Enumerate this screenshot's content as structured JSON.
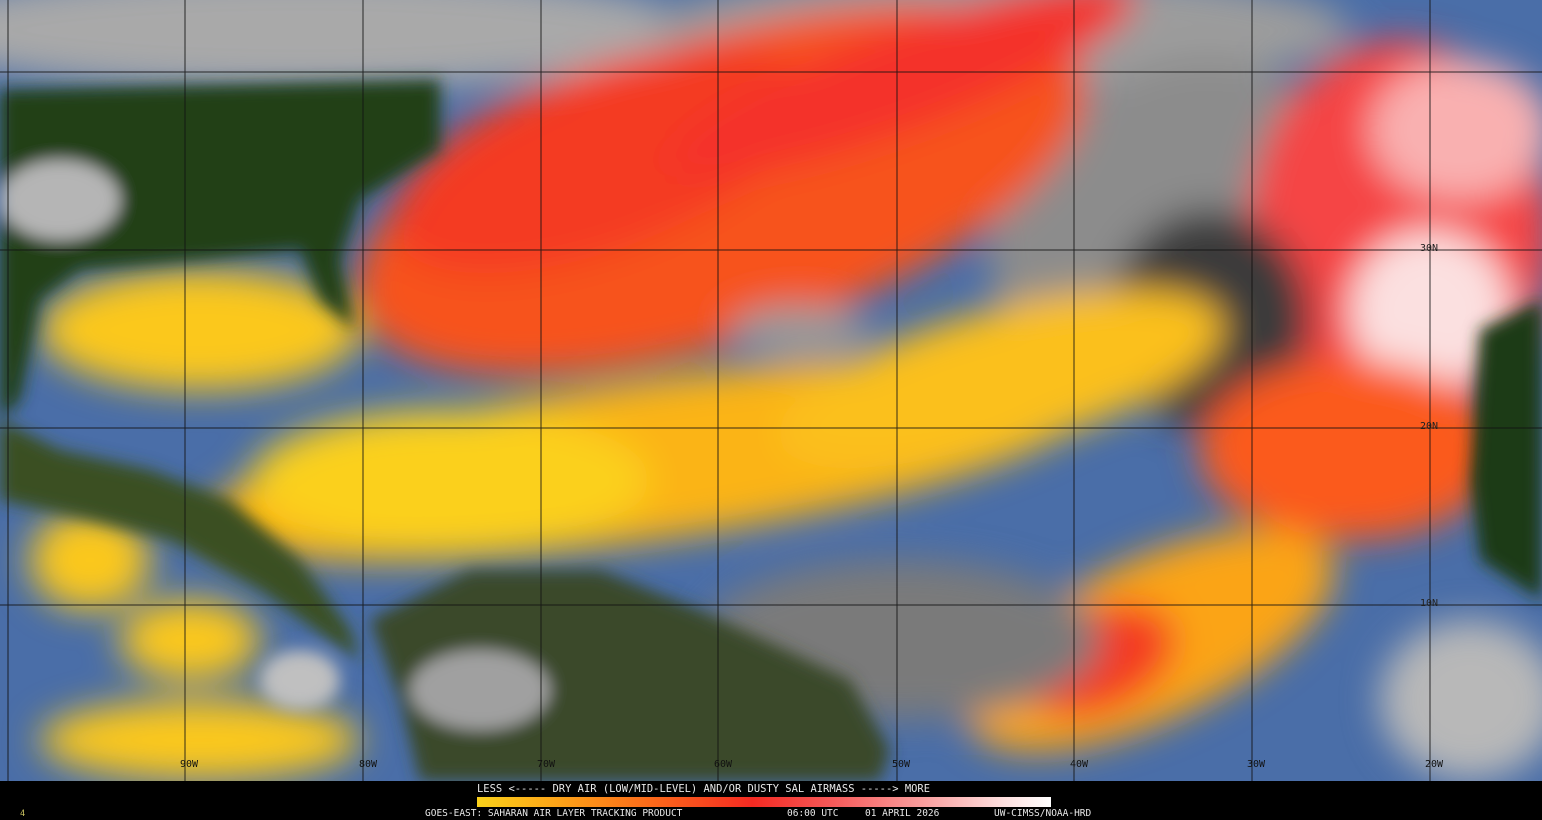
{
  "map": {
    "longitude_labels": [
      "90W",
      "80W",
      "70W",
      "60W",
      "50W",
      "40W",
      "30W",
      "20W"
    ],
    "latitude_labels": [
      "30N",
      "20N",
      "10N"
    ],
    "colors": {
      "ocean_moist": "#4a6ea8",
      "land": "#1f3a12",
      "cloud": "#b8b8b8",
      "dry_low": "#fbd21a",
      "dry_mid": "#fb7a18",
      "dry_high": "#f42a22",
      "dry_max": "#ffffff"
    }
  },
  "legend": {
    "scale_label": "LESS <----- DRY AIR (LOW/MID-LEVEL) AND/OR DUSTY SAL AIRMASS -----> MORE",
    "product": "GOES-EAST: SAHARAN AIR LAYER TRACKING PRODUCT",
    "time": "06:00 UTC",
    "date": "01 APRIL 2026",
    "credit": "UW-CIMSS/NOAA-HRD",
    "corner_mark": "4"
  }
}
